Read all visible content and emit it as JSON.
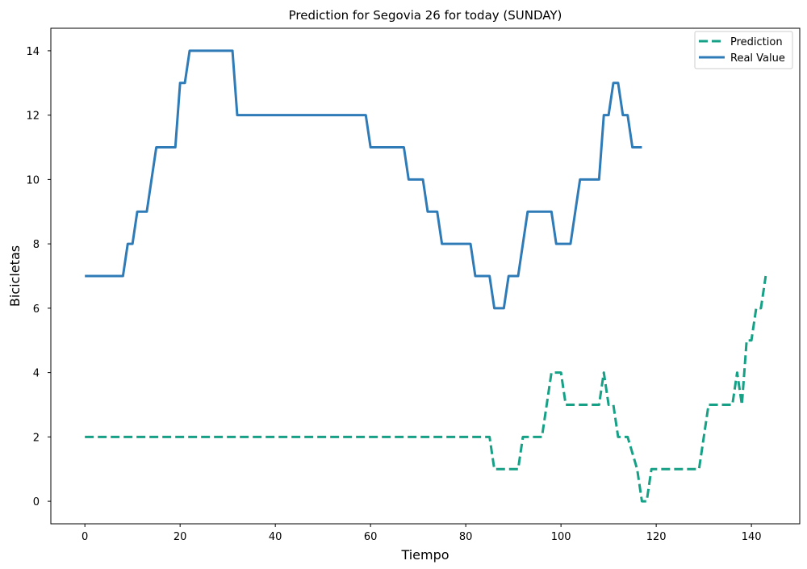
{
  "chart_data": {
    "type": "line",
    "title": "Prediction for Segovia 26 for today (SUNDAY)",
    "xlabel": "Tiempo",
    "ylabel": "Bicicletas",
    "xlim": [
      -7.15,
      150.15
    ],
    "ylim": [
      -0.7,
      14.7
    ],
    "xticks": [
      0,
      20,
      40,
      60,
      80,
      100,
      120,
      140
    ],
    "yticks": [
      0,
      2,
      4,
      6,
      8,
      10,
      12,
      14
    ],
    "grid": false,
    "legend_position": "top-right",
    "series": [
      {
        "name": "Prediction",
        "color": "#16a085",
        "dashed": true,
        "points": [
          [
            0,
            2
          ],
          [
            85,
            2
          ],
          [
            86,
            1
          ],
          [
            91,
            1
          ],
          [
            92,
            2
          ],
          [
            96,
            2
          ],
          [
            98,
            4
          ],
          [
            100,
            4
          ],
          [
            101,
            3
          ],
          [
            108,
            3
          ],
          [
            109,
            4
          ],
          [
            110,
            3
          ],
          [
            111,
            3
          ],
          [
            112,
            2
          ],
          [
            114,
            2
          ],
          [
            116,
            1
          ],
          [
            117,
            0
          ],
          [
            118,
            0
          ],
          [
            119,
            1
          ],
          [
            129,
            1
          ],
          [
            131,
            3
          ],
          [
            136,
            3
          ],
          [
            137,
            4
          ],
          [
            138,
            3
          ],
          [
            139,
            5
          ],
          [
            140,
            5
          ],
          [
            141,
            6
          ],
          [
            142,
            6
          ],
          [
            143,
            7
          ]
        ]
      },
      {
        "name": "Real Value",
        "color": "#2e7bb8",
        "dashed": false,
        "points": [
          [
            0,
            7
          ],
          [
            8,
            7
          ],
          [
            9,
            8
          ],
          [
            10,
            8
          ],
          [
            11,
            9
          ],
          [
            13,
            9
          ],
          [
            15,
            11
          ],
          [
            19,
            11
          ],
          [
            20,
            13
          ],
          [
            21,
            13
          ],
          [
            22,
            14
          ],
          [
            31,
            14
          ],
          [
            32,
            12
          ],
          [
            59,
            12
          ],
          [
            60,
            11
          ],
          [
            67,
            11
          ],
          [
            68,
            10
          ],
          [
            71,
            10
          ],
          [
            72,
            9
          ],
          [
            74,
            9
          ],
          [
            75,
            8
          ],
          [
            81,
            8
          ],
          [
            82,
            7
          ],
          [
            85,
            7
          ],
          [
            86,
            6
          ],
          [
            88,
            6
          ],
          [
            89,
            7
          ],
          [
            91,
            7
          ],
          [
            93,
            9
          ],
          [
            98,
            9
          ],
          [
            99,
            8
          ],
          [
            102,
            8
          ],
          [
            104,
            10
          ],
          [
            108,
            10
          ],
          [
            109,
            12
          ],
          [
            110,
            12
          ],
          [
            111,
            13
          ],
          [
            112,
            13
          ],
          [
            113,
            12
          ],
          [
            114,
            12
          ],
          [
            115,
            11
          ],
          [
            117,
            11
          ]
        ]
      }
    ]
  }
}
